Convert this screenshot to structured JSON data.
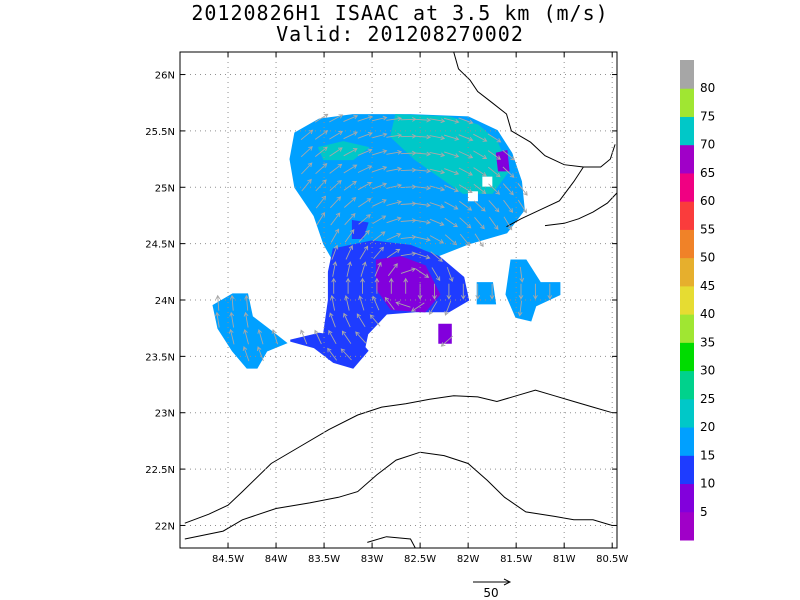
{
  "chart_data": {
    "type": "heatmap",
    "title": "20120826H1 ISAAC at 3.5 km (m/s)",
    "subtitle": "Valid: 201208270002",
    "lon_ticks": [
      "84.5W",
      "84W",
      "83.5W",
      "83W",
      "82.5W",
      "82W",
      "81.5W",
      "81W",
      "80.5W"
    ],
    "lat_ticks": [
      "26N",
      "25.5N",
      "25N",
      "24.5N",
      "24N",
      "23.5N",
      "23N",
      "22.5N",
      "22N"
    ],
    "lon_range": [
      -85.0,
      -80.45
    ],
    "lat_range": [
      21.8,
      26.2
    ],
    "grid": true,
    "colorbar": {
      "labels": [
        "5",
        "10",
        "15",
        "20",
        "25",
        "30",
        "35",
        "40",
        "45",
        "50",
        "55",
        "60",
        "65",
        "70",
        "75",
        "80"
      ],
      "colors": [
        "#a000c8",
        "#8200dc",
        "#1e3cff",
        "#00a0ff",
        "#00c8c8",
        "#00d28c",
        "#00dc00",
        "#a0e632",
        "#e6dc32",
        "#e6af2d",
        "#f08228",
        "#fa3c3c",
        "#f00082",
        "#a000c8",
        "#00c8c8",
        "#a0e632",
        "#a6a6a6"
      ]
    },
    "vector_reference": "50",
    "wind_regions": [
      {
        "speed_ms": 19,
        "polygon": [
          [
            -83.8,
            25.48
          ],
          [
            -83.55,
            25.6
          ],
          [
            -83.2,
            25.64
          ],
          [
            -82.6,
            25.64
          ],
          [
            -82.0,
            25.62
          ],
          [
            -81.7,
            25.5
          ],
          [
            -81.55,
            25.3
          ],
          [
            -81.45,
            25.05
          ],
          [
            -81.42,
            24.8
          ],
          [
            -81.6,
            24.6
          ],
          [
            -82.0,
            24.5
          ],
          [
            -82.3,
            24.4
          ],
          [
            -82.6,
            24.38
          ],
          [
            -82.9,
            24.42
          ],
          [
            -83.2,
            24.4
          ],
          [
            -83.4,
            24.35
          ],
          [
            -83.5,
            24.5
          ],
          [
            -83.6,
            24.75
          ],
          [
            -83.8,
            25.0
          ],
          [
            -83.85,
            25.25
          ]
        ]
      },
      {
        "speed_ms": 23,
        "polygon": [
          [
            -82.75,
            25.64
          ],
          [
            -82.2,
            25.62
          ],
          [
            -81.9,
            25.55
          ],
          [
            -81.7,
            25.4
          ],
          [
            -81.58,
            25.15
          ],
          [
            -81.75,
            24.95
          ],
          [
            -82.05,
            24.95
          ],
          [
            -82.3,
            25.1
          ],
          [
            -82.55,
            25.25
          ],
          [
            -82.8,
            25.45
          ]
        ]
      },
      {
        "speed_ms": 23,
        "polygon": [
          [
            -83.5,
            25.25
          ],
          [
            -83.2,
            25.25
          ],
          [
            -83.05,
            25.35
          ],
          [
            -83.3,
            25.4
          ],
          [
            -83.55,
            25.35
          ]
        ]
      },
      {
        "speed_ms": 13,
        "polygon": [
          [
            -83.4,
            24.45
          ],
          [
            -83.0,
            24.52
          ],
          [
            -82.6,
            24.48
          ],
          [
            -82.3,
            24.38
          ],
          [
            -82.05,
            24.2
          ],
          [
            -82.0,
            24.0
          ],
          [
            -82.2,
            23.9
          ],
          [
            -82.55,
            23.9
          ],
          [
            -82.85,
            23.88
          ],
          [
            -83.05,
            23.7
          ],
          [
            -83.1,
            23.5
          ],
          [
            -83.45,
            23.48
          ],
          [
            -83.5,
            23.7
          ],
          [
            -83.45,
            24.0
          ],
          [
            -83.45,
            24.25
          ]
        ]
      },
      {
        "speed_ms": 8,
        "polygon": [
          [
            -82.95,
            24.35
          ],
          [
            -82.7,
            24.38
          ],
          [
            -82.45,
            24.3
          ],
          [
            -82.3,
            24.05
          ],
          [
            -82.45,
            23.9
          ],
          [
            -82.8,
            23.92
          ],
          [
            -82.95,
            24.1
          ]
        ]
      },
      {
        "speed_ms": 12,
        "polygon": [
          [
            -83.85,
            23.64
          ],
          [
            -83.6,
            23.58
          ],
          [
            -83.4,
            23.45
          ],
          [
            -83.2,
            23.4
          ],
          [
            -83.05,
            23.55
          ],
          [
            -83.15,
            23.65
          ],
          [
            -83.55,
            23.7
          ]
        ]
      },
      {
        "speed_ms": 18,
        "polygon": [
          [
            -84.65,
            23.95
          ],
          [
            -84.45,
            24.05
          ],
          [
            -84.3,
            24.05
          ],
          [
            -84.25,
            23.85
          ],
          [
            -84.05,
            23.72
          ],
          [
            -83.9,
            23.62
          ],
          [
            -84.1,
            23.55
          ],
          [
            -84.2,
            23.4
          ],
          [
            -84.3,
            23.4
          ],
          [
            -84.45,
            23.55
          ],
          [
            -84.6,
            23.75
          ]
        ]
      },
      {
        "speed_ms": 17,
        "polygon": [
          [
            -81.55,
            24.35
          ],
          [
            -81.4,
            24.35
          ],
          [
            -81.25,
            24.15
          ],
          [
            -81.05,
            24.15
          ],
          [
            -81.05,
            24.05
          ],
          [
            -81.3,
            23.95
          ],
          [
            -81.35,
            23.82
          ],
          [
            -81.5,
            23.85
          ],
          [
            -81.6,
            24.05
          ]
        ]
      },
      {
        "speed_ms": 17,
        "polygon": [
          [
            -81.9,
            24.15
          ],
          [
            -81.75,
            24.15
          ],
          [
            -81.72,
            23.97
          ],
          [
            -81.9,
            23.97
          ]
        ]
      },
      {
        "speed_ms": 12,
        "polygon": [
          [
            -83.2,
            24.7
          ],
          [
            -83.05,
            24.68
          ],
          [
            -83.1,
            24.55
          ],
          [
            -83.2,
            24.55
          ]
        ]
      },
      {
        "speed_ms": 9,
        "polygon": [
          [
            -81.7,
            25.3
          ],
          [
            -81.6,
            25.32
          ],
          [
            -81.58,
            25.15
          ],
          [
            -81.68,
            25.15
          ]
        ]
      },
      {
        "speed_ms": 8,
        "polygon": [
          [
            -82.3,
            23.78
          ],
          [
            -82.18,
            23.78
          ],
          [
            -82.18,
            23.62
          ],
          [
            -82.3,
            23.62
          ]
        ]
      }
    ]
  }
}
